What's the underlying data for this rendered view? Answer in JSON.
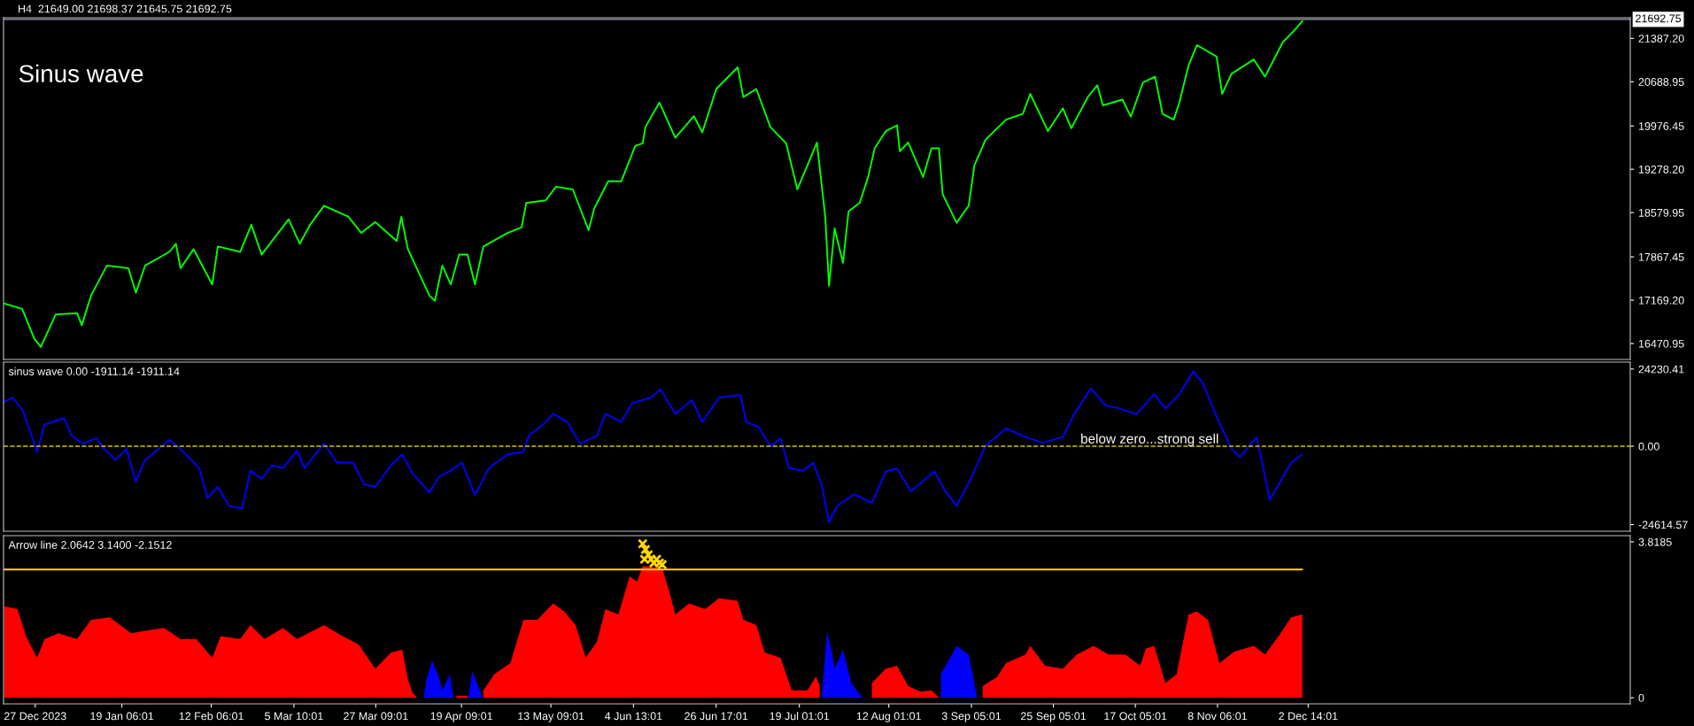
{
  "chart_data": [
    {
      "type": "line",
      "title": "H4  21649.00 21698.37 21645.75 21692.75",
      "annotations": [
        "Sinus wave"
      ],
      "xlim": [
        "2023-12-18T12:00",
        "2025-02-27"
      ],
      "ylim": [
        16214,
        21720
      ],
      "tick_labels": "y",
      "yticks": [
        {
          "value": 16470.95,
          "label": "16470.95"
        },
        {
          "value": 17169.2,
          "label": "17169.20"
        },
        {
          "value": 17867.45,
          "label": "17867.45"
        },
        {
          "value": 18579.95,
          "label": "18579.95"
        },
        {
          "value": 19278.2,
          "label": "19278.20"
        },
        {
          "value": 19976.45,
          "label": "19976.45"
        },
        {
          "value": 20688.95,
          "label": "20688.95"
        },
        {
          "value": 21387.2,
          "label": "21387.20"
        }
      ],
      "ref_lines": [
        {
          "axis": "y",
          "value": 21692.75,
          "label": "21692.75",
          "color": "#a0a0c0",
          "line_style": "solid"
        }
      ],
      "series": [
        {
          "color": "#00ff00",
          "x": [
            "2023-12-18T18:00",
            "2023-12-23T12:00",
            "2023-12-26T18:00",
            "2023-12-28T12:00",
            "2024-01-01T12:00",
            "2024-01-07T06:00",
            "2024-01-08T12:00",
            "2024-01-11T00:00",
            "2024-01-15T06:00",
            "2024-01-21T00:00",
            "2024-01-23T00:00",
            "2024-01-25T12:00",
            "2024-02-01T00:00",
            "2024-02-02T18:00",
            "2024-02-04T00:00",
            "2024-02-07T12:00",
            "2024-02-12T12:00",
            "2024-02-14T00:00",
            "2024-02-20T00:00",
            "2024-02-23T00:00",
            "2024-02-25T18:00",
            "2024-03-04T00:00",
            "2024-03-07T00:00",
            "2024-03-09T18:00",
            "2024-03-13T12:00",
            "2024-03-20T00:00",
            "2024-03-23T12:00",
            "2024-03-27T06:00",
            "2024-04-02T00:00",
            "2024-04-03T06:00",
            "2024-04-05T00:00",
            "2024-04-10T18:00",
            "2024-04-12T06:00",
            "2024-04-14T06:00",
            "2024-04-16T12:00",
            "2024-04-18T18:00",
            "2024-04-21T00:00",
            "2024-04-23T00:00",
            "2024-04-25T06:00",
            "2024-05-01T18:00",
            "2024-05-05T12:00",
            "2024-05-06T18:00",
            "2024-05-12T00:00",
            "2024-05-14T18:00",
            "2024-05-19T06:00",
            "2024-05-23T12:00",
            "2024-05-25T00:00",
            "2024-05-28T18:00",
            "2024-06-01T06:00",
            "2024-06-05T00:00",
            "2024-06-07T00:00",
            "2024-06-07T18:00",
            "2024-06-11T12:00",
            "2024-06-15T18:00",
            "2024-06-20T18:00",
            "2024-06-23T00:00",
            "2024-06-26T18:00",
            "2024-07-02T12:00",
            "2024-07-04T00:00",
            "2024-07-07T12:00",
            "2024-07-11T06:00",
            "2024-07-15T12:00",
            "2024-07-18T12:00",
            "2024-07-21T06:00",
            "2024-07-23T18:00",
            "2024-07-26T00:00",
            "2024-07-27T00:00",
            "2024-07-28T12:00",
            "2024-07-30T18:00",
            "2024-08-01T06:00",
            "2024-08-04T06:00",
            "2024-08-06T12:00",
            "2024-08-08T06:00",
            "2024-08-11T06:00",
            "2024-08-14T06:00",
            "2024-08-15T00:00",
            "2024-08-17T06:00",
            "2024-08-21T06:00",
            "2024-08-23T12:00",
            "2024-08-25T12:00",
            "2024-08-26T12:00",
            "2024-08-30T06:00",
            "2024-09-02T12:00",
            "2024-09-04T00:00",
            "2024-09-07T00:00",
            "2024-09-12T12:00",
            "2024-09-17T00:00",
            "2024-09-19T00:00",
            "2024-09-23T18:00",
            "2024-09-27T18:00",
            "2024-09-30T00:00",
            "2024-10-04T12:00",
            "2024-10-07T00:00",
            "2024-10-08T12:00",
            "2024-10-13T18:00",
            "2024-10-16T00:00",
            "2024-10-19T06:00",
            "2024-10-22T12:00",
            "2024-10-24T12:00",
            "2024-10-27T12:00",
            "2024-10-29T00:00",
            "2024-10-31T12:00",
            "2024-11-02T18:00",
            "2024-11-08T00:00",
            "2024-11-09T12:00",
            "2024-11-12T00:00",
            "2024-11-18T00:00",
            "2024-11-21T00:00",
            "2024-11-25T18:00",
            "2024-11-28T18:00",
            "2024-12-01T00:00"
          ],
          "values": [
            17115,
            17028,
            16547,
            16415,
            16940,
            16958,
            16765,
            17247,
            17728,
            17684,
            17290,
            17728,
            17947,
            18078,
            17684,
            17991,
            17422,
            18034,
            17947,
            18384,
            17903,
            18472,
            18078,
            18384,
            18691,
            18515,
            18253,
            18428,
            18122,
            18515,
            17991,
            17247,
            17159,
            17728,
            17422,
            17903,
            17903,
            17422,
            18034,
            18253,
            18341,
            18734,
            18778,
            18997,
            18953,
            18297,
            18647,
            19084,
            19084,
            19653,
            19697,
            19960,
            20353,
            19785,
            20134,
            19872,
            20572,
            20922,
            20441,
            20572,
            19960,
            19697,
            18953,
            19347,
            19708,
            18508,
            17400,
            18324,
            17770,
            18600,
            18739,
            19154,
            19616,
            19893,
            19985,
            19570,
            19708,
            19154,
            19616,
            19616,
            18877,
            18416,
            18693,
            19339,
            19754,
            20078,
            20170,
            20493,
            19893,
            20262,
            19939,
            20447,
            20631,
            20308,
            20401,
            20124,
            20678,
            20770,
            20170,
            20078,
            20354,
            20954,
            21278,
            21093,
            20493,
            20816,
            21047,
            20770,
            21324,
            21508,
            21665
          ]
        }
      ]
    },
    {
      "type": "line",
      "title": "sinus wave 0.00 -1911.14 -1911.14",
      "xlim": [
        "2023-12-18T12:00",
        "2025-02-27"
      ],
      "ylim": [
        -26690,
        26410
      ],
      "tick_labels": "y",
      "yticks": [
        {
          "value": 24230.41,
          "label": "24230.41"
        },
        {
          "value": 0,
          "label": "0.00"
        },
        {
          "value": -24614.57,
          "label": "-24614.57"
        }
      ],
      "ref_lines": [
        {
          "axis": "y",
          "value": 0,
          "label": "below zero...strong sell",
          "color": "#e0c000",
          "line_style": "dashed"
        }
      ],
      "series": [
        {
          "color": "#0000ff",
          "x": [
            "2023-12-18T18:00",
            "2023-12-21T00:00",
            "2023-12-23T18:00",
            "2023-12-27T12:00",
            "2023-12-29T12:00",
            "2023-12-31T18:00",
            "2024-01-03T18:00",
            "2024-01-05T18:00",
            "2024-01-08T18:00",
            "2024-01-12T12:00",
            "2024-01-14T12:00",
            "2024-01-17T12:00",
            "2024-01-20T12:00",
            "2024-01-23T00:00",
            "2024-01-25T12:00",
            "2024-01-29T00:00",
            "2024-02-01T00:00",
            "2024-02-04T00:00",
            "2024-02-09T00:00",
            "2024-02-11T06:00",
            "2024-02-14T00:00",
            "2024-02-17T00:00",
            "2024-02-20T12:00",
            "2024-02-22T18:00",
            "2024-02-25T18:00",
            "2024-02-28T12:00",
            "2024-03-02T12:00",
            "2024-03-06T06:00",
            "2024-03-08T06:00",
            "2024-03-13T12:00",
            "2024-03-17T00:00",
            "2024-03-21T06:00",
            "2024-03-24T06:00",
            "2024-03-27T06:00",
            "2024-03-31T12:00",
            "2024-04-03T12:00",
            "2024-04-06T06:00",
            "2024-04-10T18:00",
            "2024-04-13T12:00",
            "2024-04-16T12:00",
            "2024-04-19T12:00",
            "2024-04-23T00:00",
            "2024-04-26T18:00",
            "2024-05-01T18:00",
            "2024-05-06T00:00",
            "2024-05-07T12:00",
            "2024-05-11T06:00",
            "2024-05-14T00:00",
            "2024-05-17T18:00",
            "2024-05-21T06:00",
            "2024-05-25T18:00",
            "2024-05-28T00:00",
            "2024-06-01T06:00",
            "2024-06-04T06:00",
            "2024-06-09T06:00",
            "2024-06-11T18:00",
            "2024-06-15T18:00",
            "2024-06-20T06:00",
            "2024-06-23T00:00",
            "2024-06-27T12:00",
            "2024-07-03T06:00",
            "2024-07-04T18:00",
            "2024-07-08T06:00",
            "2024-07-11T06:00",
            "2024-07-14T00:00",
            "2024-07-16T06:00",
            "2024-07-20T00:00",
            "2024-07-22T18:00",
            "2024-07-25T00:00",
            "2024-07-27T00:00",
            "2024-07-29T06:00",
            "2024-08-02T18:00",
            "2024-08-07T12:00",
            "2024-08-11T06:00",
            "2024-08-14T06:00",
            "2024-08-18T00:00",
            "2024-08-24T06:00",
            "2024-08-27T06:00",
            "2024-08-30T06:00",
            "2024-09-03T06:00",
            "2024-09-07T00:00",
            "2024-09-12T12:00",
            "2024-09-17T18:00",
            "2024-09-22T06:00",
            "2024-09-27T18:00",
            "2024-09-30T18:00",
            "2024-10-05T06:00",
            "2024-10-09T06:00",
            "2024-10-13T00:00",
            "2024-10-17T12:00",
            "2024-10-22T06:00",
            "2024-10-25T06:00",
            "2024-10-29T00:00",
            "2024-11-01T18:00",
            "2024-11-04T06:00",
            "2024-11-08T18:00",
            "2024-11-12T00:00",
            "2024-11-14T06:00",
            "2024-11-18T18:00",
            "2024-11-20T06:00",
            "2024-11-22T06:00",
            "2024-11-25T18:00",
            "2024-11-28T00:00",
            "2024-12-01T00:00"
          ],
          "values": [
            13934,
            15296,
            11041,
            -1724,
            6786,
            7637,
            8829,
            3382,
            829,
            2531,
            -872,
            -4277,
            -872,
            -11085,
            -4277,
            -872,
            2020,
            -872,
            -6829,
            -16190,
            -12786,
            -18743,
            -19594,
            -7680,
            -10233,
            -5978,
            -6829,
            -1383,
            -6829,
            829,
            -5127,
            -5127,
            -11935,
            -12786,
            -5978,
            -2574,
            -8531,
            -14488,
            -9382,
            -7680,
            -5127,
            -15339,
            -6829,
            -2574,
            -1724,
            3382,
            6786,
            10190,
            7637,
            829,
            3382,
            10190,
            7637,
            13594,
            15296,
            17849,
            10190,
            14445,
            7637,
            15296,
            16147,
            7637,
            5935,
            -22,
            2531,
            -6829,
            -7680,
            -5127,
            -11935,
            -23850,
            -18682,
            -15090,
            -17784,
            -7906,
            -7008,
            -14192,
            -7906,
            -14192,
            -18682,
            -9702,
            176,
            5564,
            2870,
            1074,
            2870,
            10054,
            18136,
            12748,
            11850,
            10054,
            16340,
            11850,
            16340,
            23524,
            19932,
            7360,
            -723,
            -3416,
            2870,
            -5212,
            -16886,
            -9702,
            -5212,
            -2518
          ]
        }
      ]
    },
    {
      "type": "area",
      "title": "Arrow line 2.0642 3.1400 -2.1512",
      "xlim": [
        "2023-12-18T12:00",
        "2025-02-27"
      ],
      "ylim": [
        -0.15,
        3.97
      ],
      "yticks": [
        {
          "value": 3.8185,
          "label": "3.8185"
        },
        0
      ],
      "xticks": [
        {
          "value": "2023-12-27",
          "label": "27 Dec 2023"
        },
        {
          "value": "2024-01-19T06:01",
          "label": "19 Jan 06:01"
        },
        {
          "value": "2024-02-12T06:01",
          "label": "12 Feb 06:01"
        },
        {
          "value": "2024-03-05T10:01",
          "label": "5 Mar 10:01"
        },
        {
          "value": "2024-03-27T09:01",
          "label": "27 Mar 09:01"
        },
        {
          "value": "2024-04-19T09:01",
          "label": "19 Apr 09:01"
        },
        {
          "value": "2024-05-13T09:01",
          "label": "13 May 09:01"
        },
        {
          "value": "2024-06-04T13:01",
          "label": "4 Jun 13:01"
        },
        {
          "value": "2024-06-26T17:01",
          "label": "26 Jun 17:01"
        },
        {
          "value": "2024-07-19T01:01",
          "label": "19 Jul 01:01"
        },
        {
          "value": "2024-08-12T01:01",
          "label": "12 Aug 01:01"
        },
        {
          "value": "2024-09-03T05:01",
          "label": "3 Sep 05:01"
        },
        {
          "value": "2024-09-25T05:01",
          "label": "25 Sep 05:01"
        },
        {
          "value": "2024-10-17T05:01",
          "label": "17 Oct 05:01"
        },
        {
          "value": "2024-11-08T06:01",
          "label": "8 Nov 06:01"
        },
        {
          "value": "2024-12-02T14:01",
          "label": "2 Dec 14:01"
        }
      ],
      "series": [
        {
          "type": "area",
          "color": "#ff0000",
          "x": [
            "2023-12-18T18:00",
            "2023-12-22T06:00",
            "2023-12-24T12:00",
            "2023-12-27T12:00",
            "2023-12-29T12:00",
            "2024-01-02T06:00",
            "2024-01-07T06:00",
            "2024-01-11T00:00",
            "2024-01-16T00:00",
            "2024-01-21T18:00",
            "2024-01-25T12:00",
            "2024-01-30T12:00",
            "2024-02-04T00:00",
            "2024-02-08T06:00",
            "2024-02-12T12:00",
            "2024-02-14T18:00",
            "2024-02-20T00:00",
            "2024-02-22T18:00",
            "2024-02-26T12:00",
            "2024-03-02T12:00",
            "2024-03-06T06:00",
            "2024-03-13T12:00",
            "2024-03-18T12:00",
            "2024-03-22T18:00",
            "2024-03-27T06:00",
            "2024-03-31T12:00",
            "2024-04-03T12:00",
            "2024-04-05T00:00",
            "2024-04-06T06:00",
            "2024-04-07T12:00",
            "2024-04-08T12:00",
            "2024-04-18T00:00",
            "2024-04-21T00:00",
            "2024-04-21T06:00",
            "2024-04-25T06:00",
            "2024-04-28T06:00",
            "2024-05-02T12:00",
            "2024-05-06T00:00",
            "2024-05-09T18:00",
            "2024-05-14T00:00",
            "2024-05-17T00:00",
            "2024-05-20T00:00",
            "2024-05-22T18:00",
            "2024-05-25T18:00",
            "2024-05-28T00:00",
            "2024-05-31T12:00",
            "2024-06-03T12:00",
            "2024-06-05T12:00",
            "2024-06-07T00:00",
            "2024-06-12T06:00",
            "2024-06-14T06:00",
            "2024-06-15T18:00",
            "2024-06-19T12:00",
            "2024-06-23T18:00",
            "2024-06-27T12:00",
            "2024-07-02T12:00",
            "2024-07-04T00:00",
            "2024-07-07T12:00",
            "2024-07-09T18:00",
            "2024-07-14T00:00",
            "2024-07-15T12:00",
            "2024-07-17T00:00",
            "2024-07-18T12:00",
            "2024-07-21T06:00",
            "2024-07-23T12:00",
            "2024-07-24T12:00",
            "2024-07-24T18:00",
            "2024-08-07T12:00",
            "2024-08-11T06:00",
            "2024-08-14T06:00",
            "2024-08-17T06:00",
            "2024-08-20T12:00",
            "2024-08-23T12:00",
            "2024-08-25T12:00",
            "2024-08-25T18:00",
            "2024-09-06T06:00",
            "2024-09-10T00:00",
            "2024-09-12T12:00",
            "2024-09-17T18:00",
            "2024-09-19T00:00",
            "2024-09-23T00:00",
            "2024-09-27T18:00",
            "2024-10-01T12:00",
            "2024-10-06T00:00",
            "2024-10-10T00:00",
            "2024-10-14T12:00",
            "2024-10-18T12:00",
            "2024-10-20T00:00",
            "2024-10-22T06:00",
            "2024-10-25T06:00",
            "2024-10-28T06:00",
            "2024-10-31T12:00",
            "2024-11-02T18:00",
            "2024-11-05T18:00",
            "2024-11-08T18:00",
            "2024-11-12T18:00",
            "2024-11-18T00:00",
            "2024-11-21T00:00",
            "2024-11-25T00:00",
            "2024-11-28T00:00",
            "2024-12-01T00:00"
          ],
          "values": [
            2.24,
            2.17,
            1.51,
            0.98,
            1.44,
            1.58,
            1.44,
            1.91,
            1.97,
            1.58,
            1.64,
            1.71,
            1.44,
            1.44,
            0.98,
            1.51,
            1.44,
            1.78,
            1.44,
            1.71,
            1.44,
            1.78,
            1.51,
            1.31,
            0.71,
            1.11,
            1.18,
            0.45,
            0.12,
            0,
            null,
            0.05,
            0.05,
            null,
            0.18,
            0.58,
            0.85,
            1.91,
            1.91,
            2.31,
            2.11,
            1.78,
            0.98,
            1.38,
            2.17,
            2.04,
            2.97,
            2.84,
            3.23,
            3.17,
            2.57,
            2.04,
            2.31,
            2.17,
            2.44,
            2.37,
            1.91,
            1.78,
            1.11,
            0.98,
            0.58,
            0.18,
            0.18,
            0.18,
            0.52,
            0.3,
            null,
            0.36,
            0.71,
            0.78,
            0.29,
            0.15,
            0.18,
            0,
            null,
            0.29,
            0.5,
            0.85,
            1.06,
            1.27,
            0.78,
            0.71,
            1.06,
            1.27,
            1.06,
            1.06,
            0.78,
            1.2,
            1.27,
            0.36,
            0.57,
            2.04,
            2.11,
            1.9,
            0.85,
            1.13,
            1.27,
            1.06,
            1.55,
            1.97,
            2.04
          ]
        },
        {
          "type": "area",
          "color": "#0000ff",
          "x": [
            "2024-04-09T06:00",
            "2024-04-10T00:00",
            "2024-04-11T12:00",
            "2024-04-13T00:00",
            "2024-04-14T06:00",
            "2024-04-16T06:00",
            "2024-04-17T06:00",
            "2024-04-17T18:00",
            "2024-04-21T06:00",
            "2024-04-22T06:00",
            "2024-04-23T18:00",
            "2024-04-25T00:00",
            "2024-04-25T06:00",
            "2024-07-25T00:00",
            "2024-07-26T12:00",
            "2024-07-27T18:00",
            "2024-07-28T12:00",
            "2024-07-30T18:00",
            "2024-08-02T00:00",
            "2024-08-05T00:00",
            "2024-08-06T06:00",
            "2024-08-26T00:00",
            "2024-08-30T06:00",
            "2024-09-02T12:00",
            "2024-09-04T18:00"
          ],
          "values": [
            0,
            0.45,
            0.91,
            0.58,
            0.18,
            0.58,
            0,
            null,
            0,
            0.65,
            0.32,
            0,
            null,
            0,
            1.62,
            1.13,
            0.71,
            1.18,
            0.36,
            0,
            null,
            0.57,
            1.27,
            1.06,
            0
          ]
        },
        {
          "type": "line",
          "color": "#ffd700",
          "x": [
            "2023-12-18T12:00",
            "2024-12-01T00:00"
          ],
          "values": [
            3.14,
            3.14
          ]
        },
        {
          "type": "scatter",
          "color": "#ffd700",
          "marker": "cross",
          "x": [
            "2024-06-07T00:00",
            "2024-06-07T12:00",
            "2024-06-07T18:00",
            "2024-06-08T12:00",
            "2024-06-09T06:00",
            "2024-06-10T00:00",
            "2024-06-10T18:00",
            "2024-06-11T12:00",
            "2024-06-12T06:00"
          ],
          "values": [
            3.77,
            3.39,
            3.63,
            3.5,
            3.39,
            3.3,
            3.39,
            3.3,
            3.26
          ]
        }
      ]
    }
  ]
}
